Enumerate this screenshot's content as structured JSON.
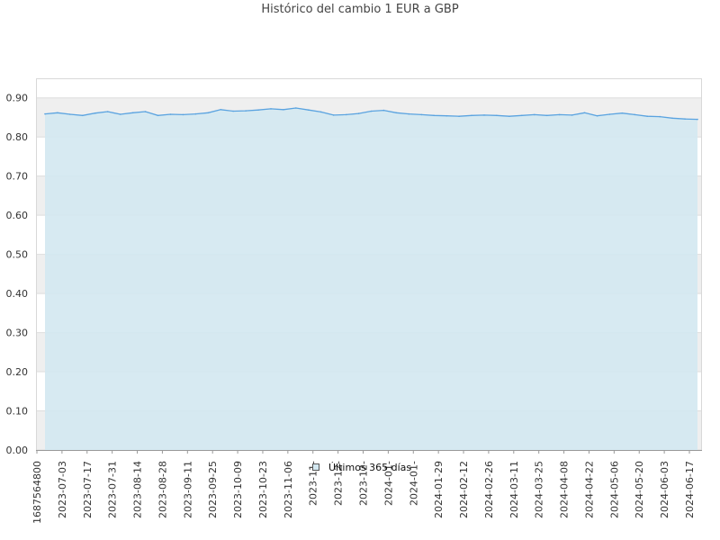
{
  "chart_data": {
    "type": "area",
    "title": "Histórico del cambio 1 EUR a GBP",
    "xlabel": "",
    "ylabel": "",
    "ylim": [
      0,
      0.95
    ],
    "yticks": [
      "0.00",
      "0.10",
      "0.20",
      "0.30",
      "0.40",
      "0.50",
      "0.60",
      "0.70",
      "0.80",
      "0.90"
    ],
    "xticks": [
      "1687564800",
      "2023-07-03",
      "2023-07-17",
      "2023-07-31",
      "2023-08-14",
      "2023-08-28",
      "2023-09-11",
      "2023-09-25",
      "2023-10-09",
      "2023-10-23",
      "2023-11-06",
      "2023-11-",
      "2023-12-",
      "2023-12-",
      "2024-01-",
      "2024-01-",
      "2024-01-29",
      "2024-02-12",
      "2024-02-26",
      "2024-03-11",
      "2024-03-25",
      "2024-04-08",
      "2024-04-22",
      "2024-05-06",
      "2024-05-20",
      "2024-06-03",
      "2024-06-17"
    ],
    "grid": true,
    "legend": "bottom-center",
    "colors": {
      "line": "#5aa3e0",
      "fill": "#d3e8f1",
      "band": "#efefef"
    },
    "series": [
      {
        "name": "Últimos 365 días",
        "x": [
          "2023-06-24",
          "2023-07-01",
          "2023-07-08",
          "2023-07-15",
          "2023-07-22",
          "2023-07-29",
          "2023-08-05",
          "2023-08-12",
          "2023-08-19",
          "2023-08-26",
          "2023-09-02",
          "2023-09-09",
          "2023-09-16",
          "2023-09-23",
          "2023-09-30",
          "2023-10-07",
          "2023-10-14",
          "2023-10-21",
          "2023-10-28",
          "2023-11-04",
          "2023-11-11",
          "2023-11-18",
          "2023-11-25",
          "2023-12-02",
          "2023-12-09",
          "2023-12-16",
          "2023-12-23",
          "2023-12-30",
          "2024-01-06",
          "2024-01-13",
          "2024-01-20",
          "2024-01-27",
          "2024-02-03",
          "2024-02-10",
          "2024-02-17",
          "2024-02-24",
          "2024-03-02",
          "2024-03-09",
          "2024-03-16",
          "2024-03-23",
          "2024-03-30",
          "2024-04-06",
          "2024-04-13",
          "2024-04-20",
          "2024-04-27",
          "2024-05-04",
          "2024-05-11",
          "2024-05-18",
          "2024-05-25",
          "2024-06-01",
          "2024-06-08",
          "2024-06-15",
          "2024-06-22"
        ],
        "values": [
          0.859,
          0.862,
          0.858,
          0.855,
          0.861,
          0.865,
          0.858,
          0.862,
          0.865,
          0.855,
          0.858,
          0.857,
          0.859,
          0.862,
          0.87,
          0.866,
          0.867,
          0.869,
          0.872,
          0.87,
          0.874,
          0.869,
          0.864,
          0.856,
          0.857,
          0.86,
          0.866,
          0.868,
          0.862,
          0.859,
          0.857,
          0.855,
          0.854,
          0.853,
          0.855,
          0.856,
          0.855,
          0.853,
          0.855,
          0.857,
          0.855,
          0.857,
          0.856,
          0.862,
          0.854,
          0.858,
          0.861,
          0.857,
          0.853,
          0.852,
          0.848,
          0.846,
          0.845
        ]
      }
    ]
  }
}
